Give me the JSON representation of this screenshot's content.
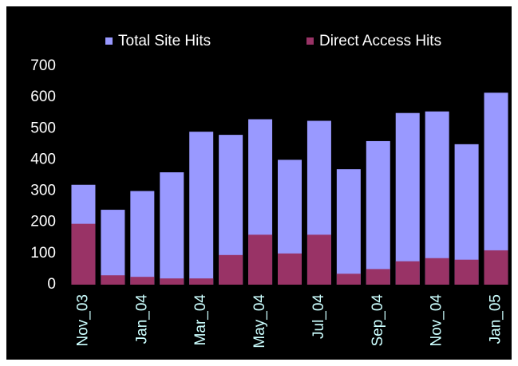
{
  "chart_data": {
    "type": "bar",
    "overlap": true,
    "categories": [
      "Nov_03",
      null,
      "Jan_04",
      null,
      "Mar_04",
      null,
      "May_04",
      null,
      "Jul_04",
      null,
      "Sep_04",
      null,
      "Nov_04",
      null,
      "Jan_05"
    ],
    "series": [
      {
        "name": "Total Site Hits",
        "color": "#9999ff",
        "values": [
          320,
          240,
          300,
          360,
          490,
          480,
          530,
          400,
          525,
          370,
          460,
          550,
          555,
          450,
          615
        ]
      },
      {
        "name": "Direct Access Hits",
        "color": "#993366",
        "values": [
          195,
          30,
          25,
          20,
          20,
          95,
          160,
          100,
          160,
          35,
          50,
          75,
          85,
          80,
          110
        ]
      }
    ],
    "ylim": [
      0,
      700
    ],
    "yticks": [
      0,
      100,
      200,
      300,
      400,
      500,
      600,
      700
    ],
    "legend": "top"
  }
}
